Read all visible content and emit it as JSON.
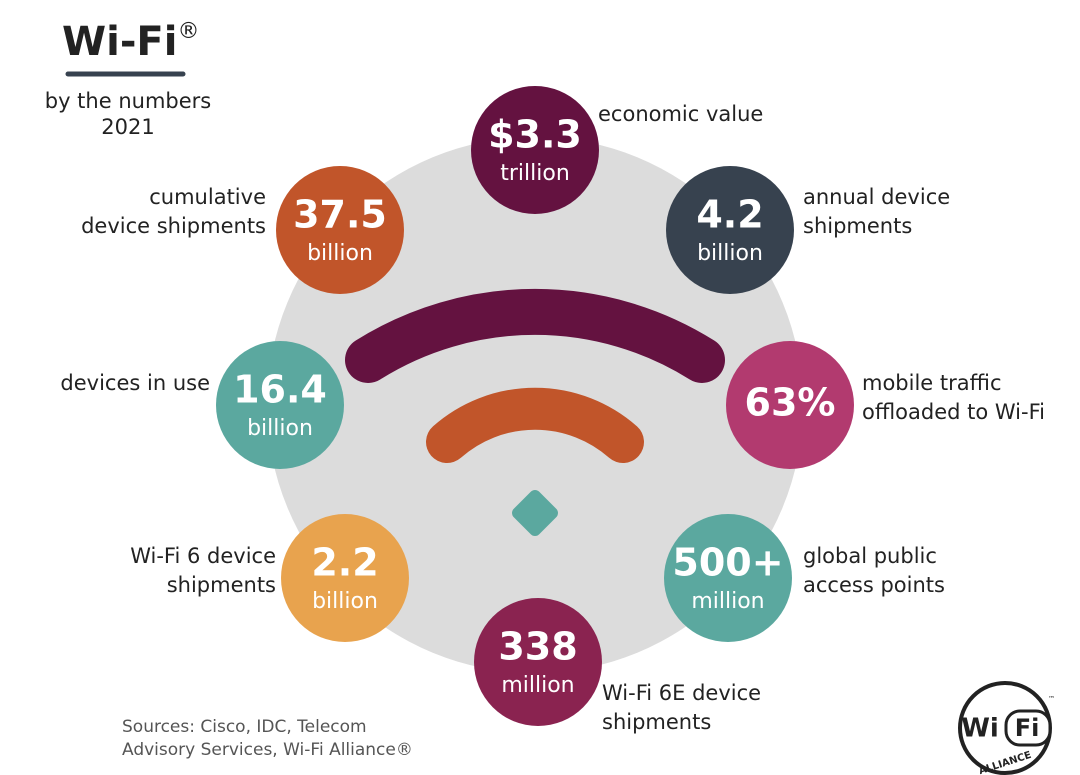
{
  "header": {
    "title": "Wi-Fi",
    "title_mark": "®",
    "subtitle": "by the numbers",
    "year": "2021"
  },
  "stats": [
    {
      "value": "$3.3",
      "unit": "trillion",
      "label": [
        "economic value"
      ],
      "color": "#641240"
    },
    {
      "value": "4.2",
      "unit": "billion",
      "label": [
        "annual device",
        "shipments"
      ],
      "color": "#37424f"
    },
    {
      "value": "63%",
      "label": [
        "mobile traffic",
        "offloaded to Wi-Fi"
      ],
      "color": "#b23a6f"
    },
    {
      "value": "500+",
      "unit": "million",
      "label": [
        "global public",
        "access points"
      ],
      "color": "#5ba89f"
    },
    {
      "value": "338",
      "unit": "million",
      "label": [
        "Wi-Fi 6E device",
        "shipments"
      ],
      "color": "#8a2350"
    },
    {
      "value": "2.2",
      "unit": "billion",
      "label": [
        "Wi-Fi 6 device",
        "shipments"
      ],
      "color": "#e8a34e"
    },
    {
      "value": "16.4",
      "unit": "billion",
      "label": [
        "devices in use"
      ],
      "color": "#5ba89f"
    },
    {
      "value": "37.5",
      "unit": "billion",
      "label": [
        "cumulative",
        "device shipments"
      ],
      "color": "#c1552a"
    }
  ],
  "sources": [
    "Sources: Cisco, IDC, Telecom",
    "Advisory Services, Wi-Fi Alliance®"
  ],
  "logo": {
    "wi": "Wi",
    "fi": "Fi",
    "alliance": "ALLIANCE",
    "tm": "™"
  }
}
